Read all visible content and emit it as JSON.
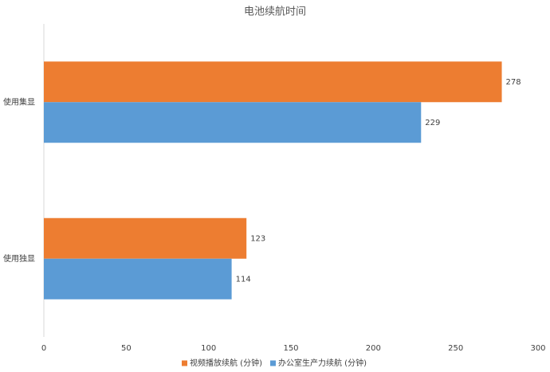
{
  "chart_data": {
    "type": "hbar",
    "title": "电池续航时间",
    "categories": [
      "使用集显",
      "使用独显"
    ],
    "series": [
      {
        "name": "视频播放续航 (分钟)",
        "color": "#ED7D31",
        "values": [
          278,
          123
        ]
      },
      {
        "name": "办公室生产力续航 (分钟)",
        "color": "#5B9BD5",
        "values": [
          229,
          114
        ]
      }
    ],
    "xlim": [
      0,
      300
    ],
    "xticks": [
      0,
      50,
      100,
      150,
      200,
      250,
      300
    ],
    "grid": false,
    "legend": "bottom"
  }
}
